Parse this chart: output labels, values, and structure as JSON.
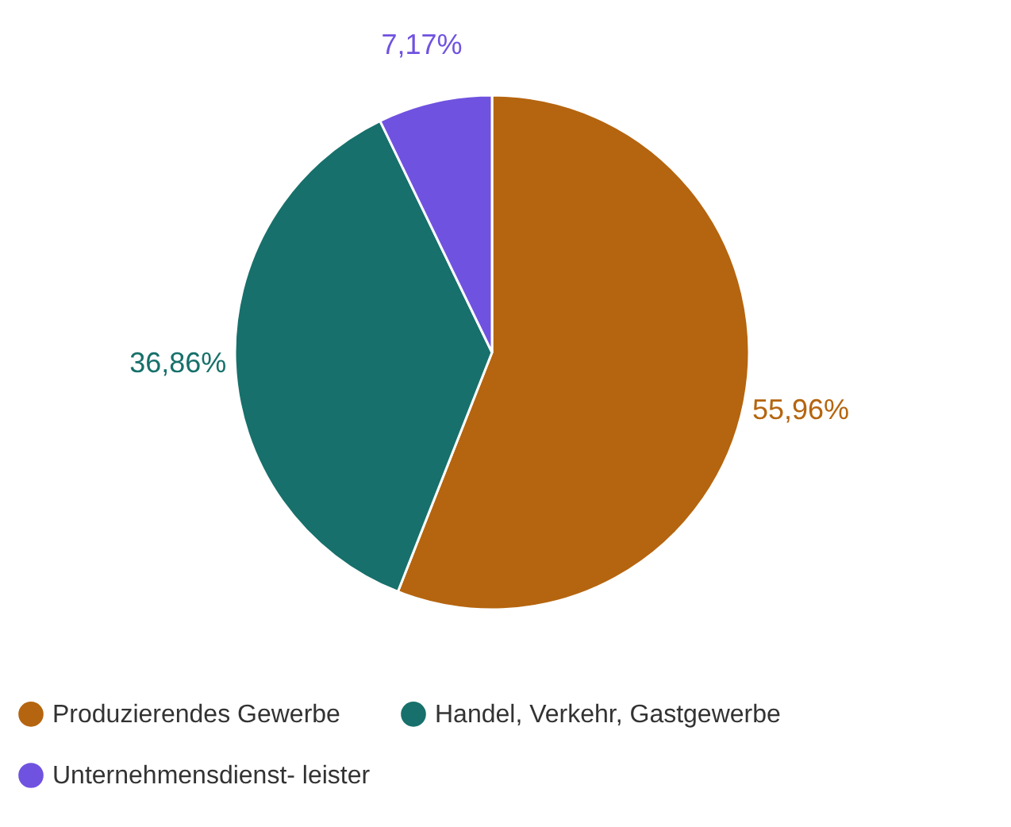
{
  "chart_data": {
    "type": "pie",
    "categories": [
      "Produzierendes Gewerbe",
      "Handel, Verkehr, Gastgewerbe",
      "Unternehmensdienst- leister"
    ],
    "values": [
      55.96,
      36.86,
      7.17
    ],
    "colors": [
      "#b5650f",
      "#17706b",
      "#7052e0"
    ],
    "value_labels": [
      "55,96%",
      "36,86%",
      "7,17%"
    ],
    "legend": "bottom"
  }
}
